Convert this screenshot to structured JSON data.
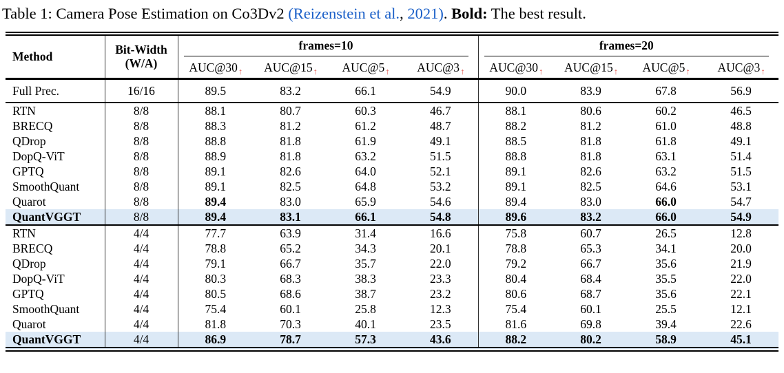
{
  "colors": {
    "highlight_row": "#dce9f6",
    "citation_link": "#1a5fc8",
    "metric_arrow": "#e0544b"
  },
  "caption": {
    "parts": [
      {
        "text": "Table 1: Camera Pose Estimation on Co3Dv2 ",
        "style": "normal"
      },
      {
        "text": "(Reizenstein et al.",
        "style": "link"
      },
      {
        "text": ", ",
        "style": "normal"
      },
      {
        "text": "2021)",
        "style": "link"
      },
      {
        "text": ". ",
        "style": "normal"
      },
      {
        "text": "Bold:",
        "style": "bold"
      },
      {
        "text": " The best result.",
        "style": "normal"
      }
    ]
  },
  "table": {
    "headers": {
      "method": "Method",
      "bitwidth_line1": "Bit-Width",
      "bitwidth_line2": "(W/A)",
      "arrow": "↑",
      "groups": [
        {
          "label": "frames=10",
          "metrics": [
            "AUC@30",
            "AUC@15",
            "AUC@5",
            "AUC@3"
          ]
        },
        {
          "label": "frames=20",
          "metrics": [
            "AUC@30",
            "AUC@15",
            "AUC@5",
            "AUC@3"
          ]
        }
      ]
    },
    "sections": [
      {
        "name": "full-precision",
        "rows": [
          {
            "method": "Full Prec.",
            "bitwidth": "16/16",
            "values": [
              "89.5",
              "83.2",
              "66.1",
              "54.9",
              "90.0",
              "83.9",
              "67.8",
              "56.9"
            ],
            "bold": [
              0,
              0,
              0,
              0,
              0,
              0,
              0,
              0
            ],
            "method_bold": false,
            "highlight": false
          }
        ]
      },
      {
        "name": "8-bit",
        "rows": [
          {
            "method": "RTN",
            "bitwidth": "8/8",
            "values": [
              "88.1",
              "80.7",
              "60.3",
              "46.7",
              "88.1",
              "80.6",
              "60.2",
              "46.5"
            ],
            "bold": [
              0,
              0,
              0,
              0,
              0,
              0,
              0,
              0
            ],
            "method_bold": false,
            "highlight": false
          },
          {
            "method": "BRECQ",
            "bitwidth": "8/8",
            "values": [
              "88.3",
              "81.2",
              "61.2",
              "48.7",
              "88.2",
              "81.2",
              "61.0",
              "48.8"
            ],
            "bold": [
              0,
              0,
              0,
              0,
              0,
              0,
              0,
              0
            ],
            "method_bold": false,
            "highlight": false
          },
          {
            "method": "QDrop",
            "bitwidth": "8/8",
            "values": [
              "88.8",
              "81.8",
              "61.9",
              "49.1",
              "88.5",
              "81.8",
              "61.8",
              "49.1"
            ],
            "bold": [
              0,
              0,
              0,
              0,
              0,
              0,
              0,
              0
            ],
            "method_bold": false,
            "highlight": false
          },
          {
            "method": "DopQ-ViT",
            "bitwidth": "8/8",
            "values": [
              "88.9",
              "81.8",
              "63.2",
              "51.5",
              "88.8",
              "81.8",
              "63.1",
              "51.4"
            ],
            "bold": [
              0,
              0,
              0,
              0,
              0,
              0,
              0,
              0
            ],
            "method_bold": false,
            "highlight": false
          },
          {
            "method": "GPTQ",
            "bitwidth": "8/8",
            "values": [
              "89.1",
              "82.6",
              "64.0",
              "52.1",
              "89.1",
              "82.6",
              "63.2",
              "51.5"
            ],
            "bold": [
              0,
              0,
              0,
              0,
              0,
              0,
              0,
              0
            ],
            "method_bold": false,
            "highlight": false
          },
          {
            "method": "SmoothQuant",
            "bitwidth": "8/8",
            "values": [
              "89.1",
              "82.5",
              "64.8",
              "53.2",
              "89.1",
              "82.5",
              "64.6",
              "53.1"
            ],
            "bold": [
              0,
              0,
              0,
              0,
              0,
              0,
              0,
              0
            ],
            "method_bold": false,
            "highlight": false
          },
          {
            "method": "Quarot",
            "bitwidth": "8/8",
            "values": [
              "89.4",
              "83.0",
              "65.9",
              "54.6",
              "89.4",
              "83.0",
              "66.0",
              "54.7"
            ],
            "bold": [
              1,
              0,
              0,
              0,
              0,
              0,
              1,
              0
            ],
            "method_bold": false,
            "highlight": false
          },
          {
            "method": "QuantVGGT",
            "bitwidth": "8/8",
            "values": [
              "89.4",
              "83.1",
              "66.1",
              "54.8",
              "89.6",
              "83.2",
              "66.0",
              "54.9"
            ],
            "bold": [
              1,
              1,
              1,
              1,
              1,
              1,
              1,
              1
            ],
            "method_bold": true,
            "highlight": true
          }
        ]
      },
      {
        "name": "4-bit",
        "rows": [
          {
            "method": "RTN",
            "bitwidth": "4/4",
            "values": [
              "77.7",
              "63.9",
              "31.4",
              "16.6",
              "75.8",
              "60.7",
              "26.5",
              "12.8"
            ],
            "bold": [
              0,
              0,
              0,
              0,
              0,
              0,
              0,
              0
            ],
            "method_bold": false,
            "highlight": false
          },
          {
            "method": "BRECQ",
            "bitwidth": "4/4",
            "values": [
              "78.8",
              "65.2",
              "34.3",
              "20.1",
              "78.8",
              "65.3",
              "34.1",
              "20.0"
            ],
            "bold": [
              0,
              0,
              0,
              0,
              0,
              0,
              0,
              0
            ],
            "method_bold": false,
            "highlight": false
          },
          {
            "method": "QDrop",
            "bitwidth": "4/4",
            "values": [
              "79.1",
              "66.7",
              "35.7",
              "22.0",
              "79.2",
              "66.7",
              "35.6",
              "21.9"
            ],
            "bold": [
              0,
              0,
              0,
              0,
              0,
              0,
              0,
              0
            ],
            "method_bold": false,
            "highlight": false
          },
          {
            "method": "DopQ-ViT",
            "bitwidth": "4/4",
            "values": [
              "80.3",
              "68.3",
              "38.3",
              "23.3",
              "80.4",
              "68.4",
              "35.5",
              "22.0"
            ],
            "bold": [
              0,
              0,
              0,
              0,
              0,
              0,
              0,
              0
            ],
            "method_bold": false,
            "highlight": false
          },
          {
            "method": "GPTQ",
            "bitwidth": "4/4",
            "values": [
              "80.5",
              "68.6",
              "38.7",
              "23.2",
              "80.6",
              "68.7",
              "35.6",
              "22.1"
            ],
            "bold": [
              0,
              0,
              0,
              0,
              0,
              0,
              0,
              0
            ],
            "method_bold": false,
            "highlight": false
          },
          {
            "method": "SmoothQuant",
            "bitwidth": "4/4",
            "values": [
              "75.4",
              "60.1",
              "25.8",
              "12.3",
              "75.4",
              "60.1",
              "25.5",
              "12.1"
            ],
            "bold": [
              0,
              0,
              0,
              0,
              0,
              0,
              0,
              0
            ],
            "method_bold": false,
            "highlight": false
          },
          {
            "method": "Quarot",
            "bitwidth": "4/4",
            "values": [
              "81.8",
              "70.3",
              "40.1",
              "23.5",
              "81.6",
              "69.8",
              "39.4",
              "22.6"
            ],
            "bold": [
              0,
              0,
              0,
              0,
              0,
              0,
              0,
              0
            ],
            "method_bold": false,
            "highlight": false
          },
          {
            "method": "QuantVGGT",
            "bitwidth": "4/4",
            "values": [
              "86.9",
              "78.7",
              "57.3",
              "43.6",
              "88.2",
              "80.2",
              "58.9",
              "45.1"
            ],
            "bold": [
              1,
              1,
              1,
              1,
              1,
              1,
              1,
              1
            ],
            "method_bold": true,
            "highlight": true
          }
        ]
      }
    ]
  }
}
